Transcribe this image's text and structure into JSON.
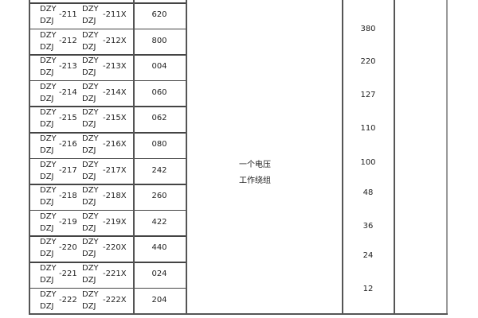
{
  "rows": [
    {
      "a": "DZY",
      "b": "DZJ",
      "c": "-211",
      "d": "DZY",
      "e": "DZJ",
      "f": "-211X",
      "g": "620"
    },
    {
      "a": "DZY",
      "b": "DZJ",
      "c": "-212",
      "d": "DZY",
      "e": "DZJ",
      "f": "-212X",
      "g": "800"
    },
    {
      "a": "DZY",
      "b": "DZJ",
      "c": "-213",
      "d": "DZY",
      "e": "DZJ",
      "f": "-213X",
      "g": "004"
    },
    {
      "a": "DZY",
      "b": "DZJ",
      "c": "-214",
      "d": "DZY",
      "e": "DZJ",
      "f": "-214X",
      "g": "060"
    },
    {
      "a": "DZY",
      "b": "DZJ",
      "c": "-215",
      "d": "DZY",
      "e": "DZJ",
      "f": "-215X",
      "g": "062"
    },
    {
      "a": "DZY",
      "b": "DZJ",
      "c": "-216",
      "d": "DZY",
      "e": "DZJ",
      "f": "-216X",
      "g": "080"
    },
    {
      "a": "DZY",
      "b": "DZJ",
      "c": "-217",
      "d": "DZY",
      "e": "DZJ",
      "f": "-217X",
      "g": "242"
    },
    {
      "a": "DZY",
      "b": "DZJ",
      "c": "-218",
      "d": "DZY",
      "e": "DZJ",
      "f": "-218X",
      "g": "260"
    },
    {
      "a": "DZY",
      "b": "DZJ",
      "c": "-219",
      "d": "DZY",
      "e": "DZJ",
      "f": "-219X",
      "g": "422"
    },
    {
      "a": "DZY",
      "b": "DZJ",
      "c": "-220",
      "d": "DZY",
      "e": "DZJ",
      "f": "-220X",
      "g": "440"
    },
    {
      "a": "DZY",
      "b": "DZJ",
      "c": "-221",
      "d": "DZY",
      "e": "DZJ",
      "f": "-221X",
      "g": "024"
    },
    {
      "a": "DZY",
      "b": "DZJ",
      "c": "-222",
      "d": "DZY",
      "e": "DZJ",
      "f": "-222X",
      "g": "204"
    }
  ],
  "winding": {
    "line1": "一个电压",
    "line2": "工作绕组"
  },
  "voltages": [
    "380",
    "220",
    "127",
    "110",
    "100",
    "48",
    "36",
    "24",
    "12"
  ]
}
